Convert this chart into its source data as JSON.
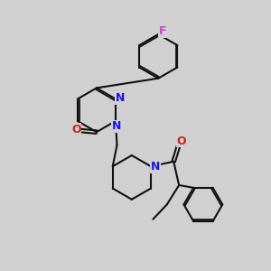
{
  "bg_color": "#d0d0d0",
  "bond_color": "#111111",
  "N_color": "#1515ee",
  "O_color": "#cc2020",
  "F_color": "#cc44cc",
  "bond_lw": 1.5,
  "dbl_off": 0.06,
  "fs": 9,
  "figsize": [
    3.0,
    3.0
  ],
  "dpi": 100,
  "xlim": [
    0,
    10
  ],
  "ylim": [
    0,
    10
  ]
}
